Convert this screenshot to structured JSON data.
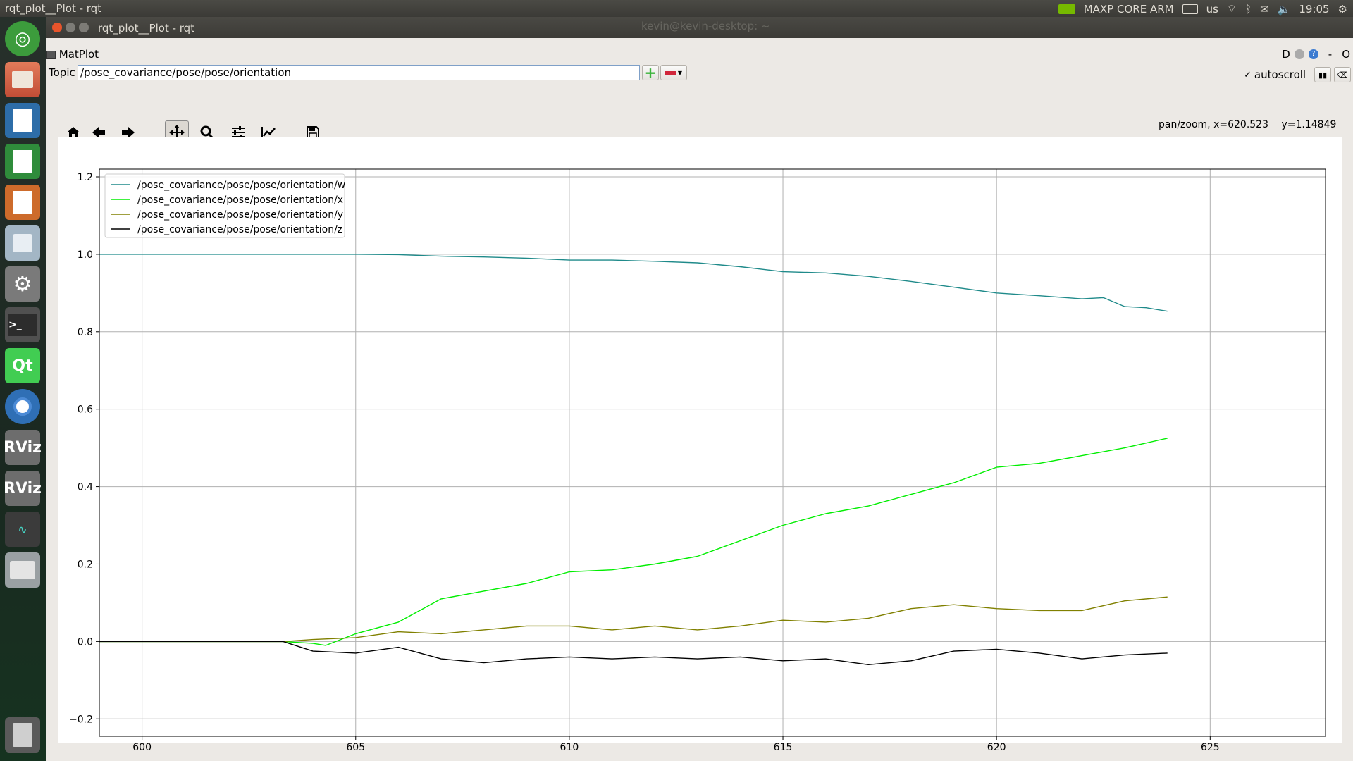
{
  "topbar": {
    "title": "rqt_plot__Plot - rqt",
    "perf_mode": "MAXP CORE ARM",
    "keyboard": "us",
    "clock": "19:05"
  },
  "background_window_title": "kevin@kevin-desktop: ~",
  "window": {
    "title": "rqt_plot__Plot - rqt",
    "plugin_title": "MatPlot",
    "plugin_controls": [
      "D",
      "-",
      "O"
    ]
  },
  "topic": {
    "label": "Topic",
    "value": "/pose_covariance/pose/pose/orientation"
  },
  "autoscroll": {
    "label": "autoscroll",
    "checked": true
  },
  "status": {
    "mode": "pan/zoom,",
    "x": "x=620.523",
    "y": "y=1.14849"
  },
  "launcher": {
    "items": [
      "ubuntu-icon",
      "files-icon",
      "writer-icon",
      "calc-icon",
      "impress-icon",
      "software-icon",
      "settings-icon",
      "terminal-icon",
      "qt-icon",
      "chromium-icon",
      "rviz-icon",
      "rviz-icon",
      "monitor-icon",
      "drive-icon",
      "trash-icon"
    ]
  },
  "toolbar": {
    "items": [
      "home-icon",
      "back-icon",
      "forward-icon",
      "pan-icon",
      "zoom-icon",
      "subplots-icon",
      "axes-icon",
      "save-icon"
    ]
  },
  "colors": {
    "w": "#1f8a8a",
    "x": "#00ee00",
    "y": "#808000",
    "z": "#000000"
  },
  "chart_data": {
    "type": "line",
    "title": "",
    "xlabel": "",
    "ylabel": "",
    "xlim": [
      599,
      627.7
    ],
    "ylim": [
      -0.245,
      1.22
    ],
    "xticks": [
      600,
      605,
      610,
      615,
      620,
      625
    ],
    "yticks": [
      -0.2,
      0.0,
      0.2,
      0.4,
      0.6,
      0.8,
      1.0,
      1.2
    ],
    "ytick_labels": [
      "−0.2",
      "0.0",
      "0.2",
      "0.4",
      "0.6",
      "0.8",
      "1.0",
      "1.2"
    ],
    "grid": true,
    "legend": "top-left",
    "series": [
      {
        "name": "/pose_covariance/pose/pose/orientation/w",
        "color": "#1f8a8a",
        "x": [
          599,
          603,
          604,
          605,
          606,
          607,
          608,
          609,
          610,
          611,
          612,
          613,
          614,
          615,
          616,
          617,
          618,
          619,
          620,
          621,
          622,
          622.5,
          623,
          623.5,
          624
        ],
        "y": [
          1.0,
          1.0,
          1.0,
          1.0,
          0.999,
          0.995,
          0.993,
          0.99,
          0.985,
          0.985,
          0.982,
          0.978,
          0.968,
          0.955,
          0.952,
          0.943,
          0.93,
          0.915,
          0.9,
          0.893,
          0.885,
          0.888,
          0.865,
          0.862,
          0.853
        ]
      },
      {
        "name": "/pose_covariance/pose/pose/orientation/x",
        "color": "#00ee00",
        "x": [
          599,
          603.3,
          604,
          604.3,
          605,
          606,
          607,
          608,
          609,
          610,
          611,
          612,
          613,
          614,
          615,
          616,
          617,
          618,
          619,
          620,
          621,
          622,
          623,
          624
        ],
        "y": [
          0.0,
          0.0,
          -0.005,
          -0.01,
          0.02,
          0.05,
          0.11,
          0.13,
          0.15,
          0.18,
          0.185,
          0.2,
          0.22,
          0.26,
          0.3,
          0.33,
          0.35,
          0.38,
          0.41,
          0.45,
          0.46,
          0.48,
          0.5,
          0.525
        ]
      },
      {
        "name": "/pose_covariance/pose/pose/orientation/y",
        "color": "#808000",
        "x": [
          599,
          603.3,
          604,
          605,
          606,
          607,
          608,
          609,
          610,
          611,
          612,
          613,
          614,
          615,
          616,
          617,
          618,
          619,
          620,
          621,
          622,
          623,
          624
        ],
        "y": [
          0.0,
          0.0,
          0.005,
          0.01,
          0.025,
          0.02,
          0.03,
          0.04,
          0.04,
          0.03,
          0.04,
          0.03,
          0.04,
          0.055,
          0.05,
          0.06,
          0.085,
          0.095,
          0.085,
          0.08,
          0.08,
          0.105,
          0.115
        ]
      },
      {
        "name": "/pose_covariance/pose/pose/orientation/z",
        "color": "#000000",
        "x": [
          599,
          603.3,
          604,
          605,
          606,
          607,
          608,
          609,
          610,
          611,
          612,
          613,
          614,
          615,
          616,
          617,
          618,
          619,
          620,
          621,
          622,
          623,
          624
        ],
        "y": [
          0.0,
          0.0,
          -0.025,
          -0.03,
          -0.015,
          -0.045,
          -0.055,
          -0.045,
          -0.04,
          -0.045,
          -0.04,
          -0.045,
          -0.04,
          -0.05,
          -0.045,
          -0.06,
          -0.05,
          -0.025,
          -0.02,
          -0.03,
          -0.045,
          -0.035,
          -0.03
        ]
      }
    ]
  }
}
